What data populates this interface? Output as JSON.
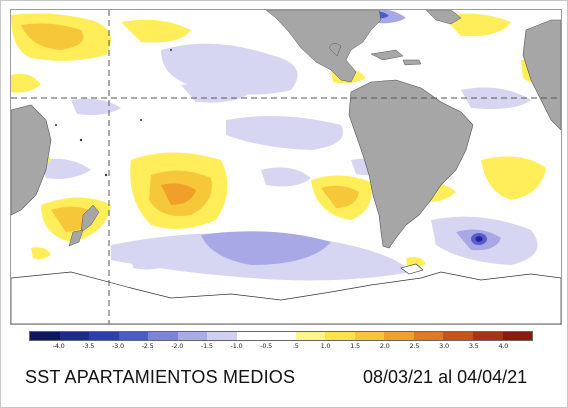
{
  "map": {
    "title": "SST APARTAMIENTOS MEDIOS",
    "date_range": "08/03/21 al 04/04/21",
    "colors": {
      "land": "#a6a6a6",
      "ocean_neutral": "#ffffff",
      "warm_light": "#ffee5a",
      "warm_mid": "#f7c73a",
      "warm_strong": "#f0a02a",
      "cool_light": "#d6d6f2",
      "cool_mid": "#a8a8e6",
      "cool_strong": "#5a5ac8",
      "cool_core": "#22229a",
      "reference_line": "#555555"
    }
  },
  "colorbar": {
    "ticks": [
      "-4.0",
      "-3.5",
      "-3.0",
      "-2.5",
      "-2.0",
      "-1.5",
      "-1.0",
      "-0.5",
      ".5",
      "1.0",
      "1.5",
      "2.0",
      "2.5",
      "3.0",
      "3.5",
      "4.0"
    ],
    "colors": [
      "#0f1660",
      "#1c2a8c",
      "#2b3fae",
      "#4a5cc6",
      "#7b84d8",
      "#a7abe6",
      "#cdd0f2",
      "#ffffff",
      "#ffffff",
      "#fff58a",
      "#ffe24a",
      "#f7c43a",
      "#f0a12c",
      "#e07a22",
      "#c8531a",
      "#a83214",
      "#8a1a0c"
    ]
  }
}
